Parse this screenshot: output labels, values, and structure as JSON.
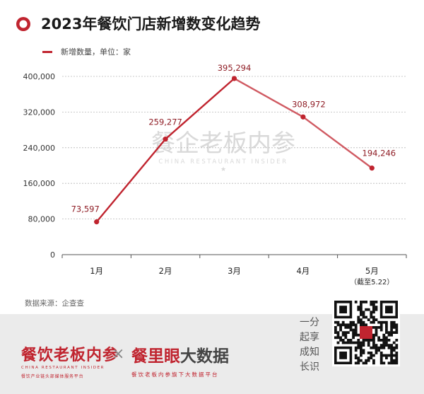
{
  "header": {
    "title": "2023年餐饮门店新增数变化趋势",
    "accent_color": "#c0242f",
    "icon": "target-circle-icon"
  },
  "legend": {
    "label": "新增数量，单位：家"
  },
  "chart_data": {
    "type": "line",
    "title": "2023年餐饮门店新增数变化趋势",
    "categories": [
      "1月",
      "2月",
      "3月",
      "4月",
      "5月"
    ],
    "category_notes": [
      "",
      "",
      "",
      "",
      "（截至5.22）"
    ],
    "series": [
      {
        "name": "新增数量，单位：家",
        "values": [
          73597,
          259277,
          395294,
          308972,
          194246
        ]
      }
    ],
    "data_labels": [
      "73,597",
      "259,277",
      "395,294",
      "308,972",
      "194,246"
    ],
    "yticks": [
      0,
      80000,
      160000,
      240000,
      320000,
      400000
    ],
    "ytick_labels": [
      "0",
      "80,000",
      "160,000",
      "240,000",
      "320,000",
      "400,000"
    ],
    "ylim": [
      0,
      400000
    ],
    "xlabel": "",
    "ylabel": "",
    "grid": true,
    "line_color": "#c0242f",
    "watermark": {
      "cn": "餐企老板内参",
      "en": "CHINA RESTAURANT INSIDER"
    }
  },
  "source": "数据来源：企查查",
  "footer": {
    "brand1": {
      "name": "餐饮老板内参",
      "en": "CHINA RESTAURANT INSIDER",
      "sub": "餐饮产业链头部媒体服务平台"
    },
    "cross": "×",
    "brand2": {
      "name_red": "餐里眼",
      "name_dark": "大数据",
      "sub": "餐饮老板内参旗下大数据平台"
    },
    "slogan": [
      "一分",
      "起享",
      "成知",
      "长识"
    ],
    "qr": {
      "icon": "qr-code-icon"
    }
  }
}
